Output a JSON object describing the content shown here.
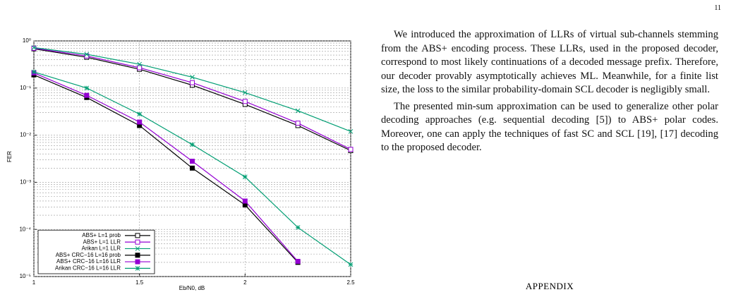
{
  "page_number": "11",
  "chart_data": {
    "type": "line",
    "x_label": "Eb/N0, dB",
    "y_label": "FER",
    "log_y": true,
    "grid": true,
    "legend": "lower left",
    "x": [
      1,
      1.25,
      1.5,
      1.75,
      2,
      2.25,
      2.5
    ],
    "xlim": [
      1,
      2.5
    ],
    "xticks": [
      1,
      1.5,
      2,
      2.5
    ],
    "ylim": [
      1e-05,
      1
    ],
    "yticks": [
      {
        "value": 1,
        "label": "10⁰"
      },
      {
        "value": 0.1,
        "label": "10⁻¹"
      },
      {
        "value": 0.01,
        "label": "10⁻²"
      },
      {
        "value": 0.001,
        "label": "10⁻³"
      },
      {
        "value": 0.0001,
        "label": "10⁻⁴"
      },
      {
        "value": 1e-05,
        "label": "10⁻⁵"
      }
    ],
    "series": [
      {
        "name": "ABS+ L=1 prob",
        "color": "#000000",
        "marker": "square-open",
        "values": [
          0.68,
          0.45,
          0.25,
          0.115,
          0.045,
          0.016,
          0.0047
        ]
      },
      {
        "name": "ABS+ L=1 LLR",
        "color": "#9400d3",
        "marker": "square-open",
        "values": [
          0.7,
          0.48,
          0.27,
          0.13,
          0.052,
          0.018,
          0.005
        ]
      },
      {
        "name": "Arikan L=1 LLR",
        "color": "#009e73",
        "marker": "x",
        "values": [
          0.72,
          0.52,
          0.32,
          0.17,
          0.08,
          0.033,
          0.012
        ]
      },
      {
        "name": "ABS+ CRC−16 L=16 prob",
        "color": "#000000",
        "marker": "square-filled",
        "values": [
          0.19,
          0.063,
          0.016,
          0.002,
          0.00033,
          2e-05,
          null
        ]
      },
      {
        "name": "ABS+ CRC−16 L=16 LLR",
        "color": "#9400d3",
        "marker": "square-filled",
        "values": [
          0.21,
          0.07,
          0.019,
          0.0028,
          0.0004,
          2.1e-05,
          null
        ]
      },
      {
        "name": "Arikan CRC−16 L=16 LLR",
        "color": "#009e73",
        "marker": "star",
        "values": [
          0.22,
          0.1,
          0.028,
          0.0063,
          0.0013,
          0.00011,
          1.8e-05
        ]
      }
    ]
  },
  "text": {
    "paragraphs": [
      "We introduced the approximation of LLRs of virtual sub-channels stemming from the ABS+ encoding process. These LLRs, used in the proposed decoder, correspond to most likely continuations of a decoded message prefix. Therefore, our decoder provably asymptotically achieves ML. Meanwhile, for a finite list size, the loss to the similar probability-domain SCL decoder is negligibly small.",
      "The presented min-sum approximation can be used to generalize other polar decoding approaches (e.g. sequential decoding [5]) to ABS+ polar codes. Moreover, one can apply the techniques of fast SC and SCL [19], [17] decoding to the proposed decoder."
    ],
    "heading": "APPENDIX"
  }
}
